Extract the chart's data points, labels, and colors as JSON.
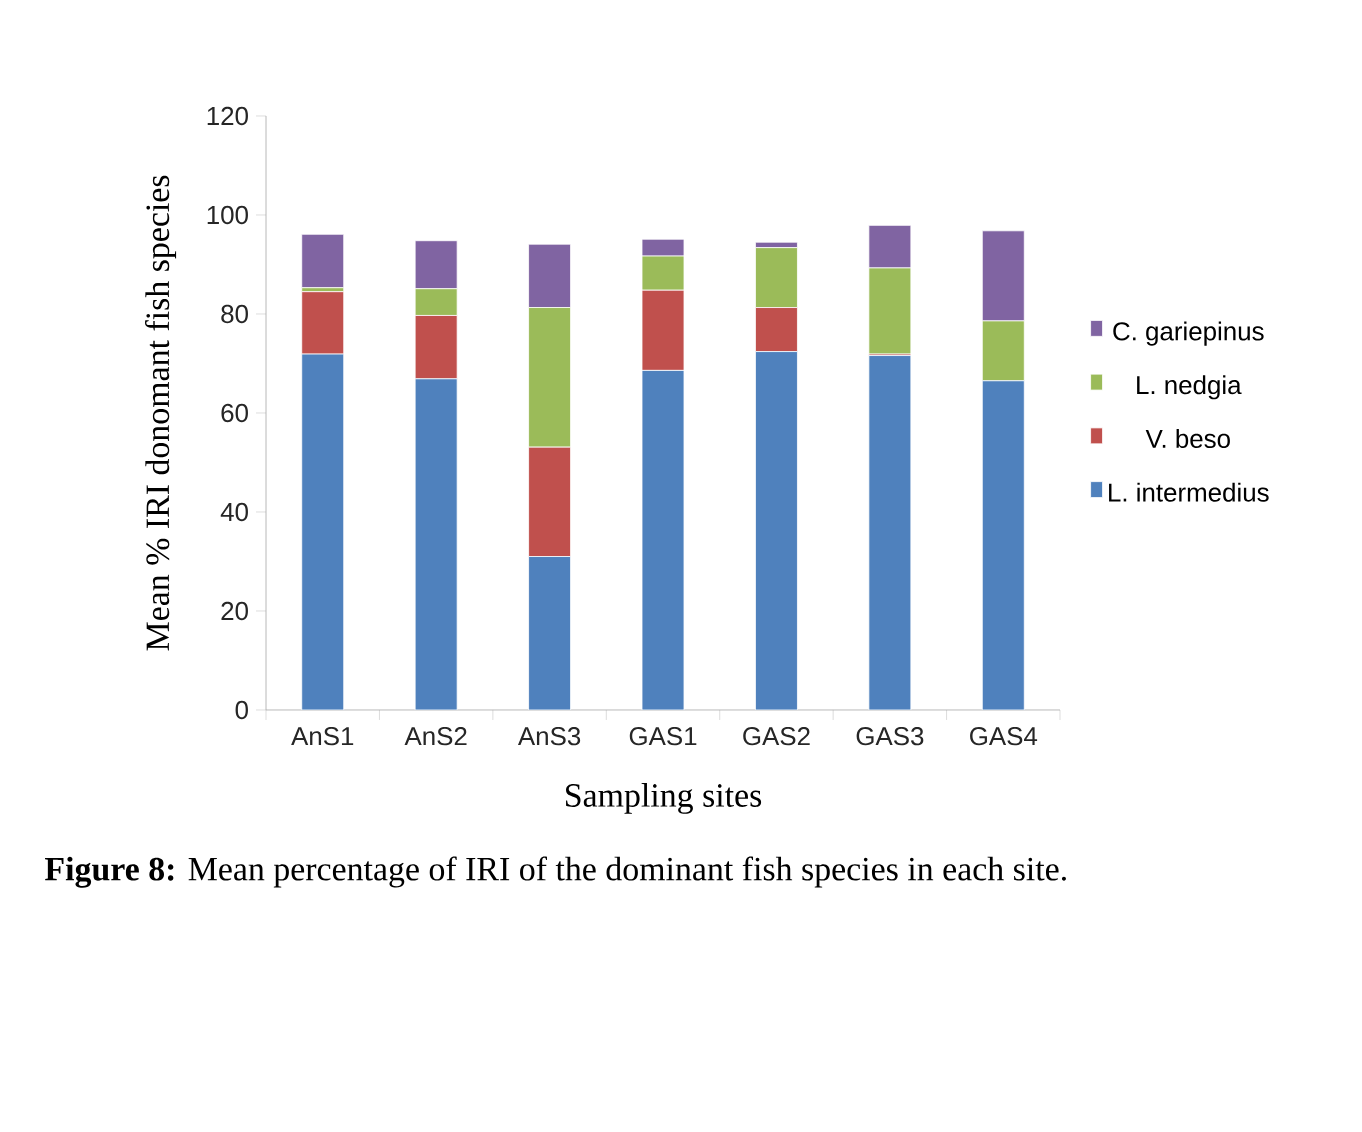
{
  "chart_data": {
    "type": "bar",
    "stacked": true,
    "xlabel": "Sampling sites",
    "ylabel": "Mean % IRI donomant fish species",
    "categories": [
      "AnS1",
      "AnS2",
      "AnS3",
      "GAS1",
      "GAS2",
      "GAS3",
      "GAS4"
    ],
    "series": [
      {
        "name": "L. intermedius",
        "color": "#4f81bd",
        "values": [
          71.9,
          66.9,
          31.0,
          68.6,
          72.4,
          71.6,
          66.5
        ]
      },
      {
        "name": "V. beso",
        "color": "#c0504d",
        "values": [
          12.6,
          12.8,
          22.1,
          16.2,
          8.9,
          0.3,
          0
        ]
      },
      {
        "name": "L. nedgia",
        "color": "#9bbb59",
        "values": [
          0.8,
          5.4,
          28.2,
          6.9,
          12.1,
          17.4,
          12.1
        ]
      },
      {
        "name": "C. gariepinus",
        "color": "#8064a2",
        "values": [
          10.8,
          9.7,
          12.8,
          3.4,
          1.1,
          8.6,
          18.2
        ]
      }
    ],
    "ylim": [
      0,
      120
    ],
    "yticks": [
      0,
      20,
      40,
      60,
      80,
      100,
      120
    ],
    "grid": false,
    "legend": "right",
    "annotations": [
      "**Figure 8:** Mean percentage of IRI of the dominant fish species in each site."
    ]
  }
}
